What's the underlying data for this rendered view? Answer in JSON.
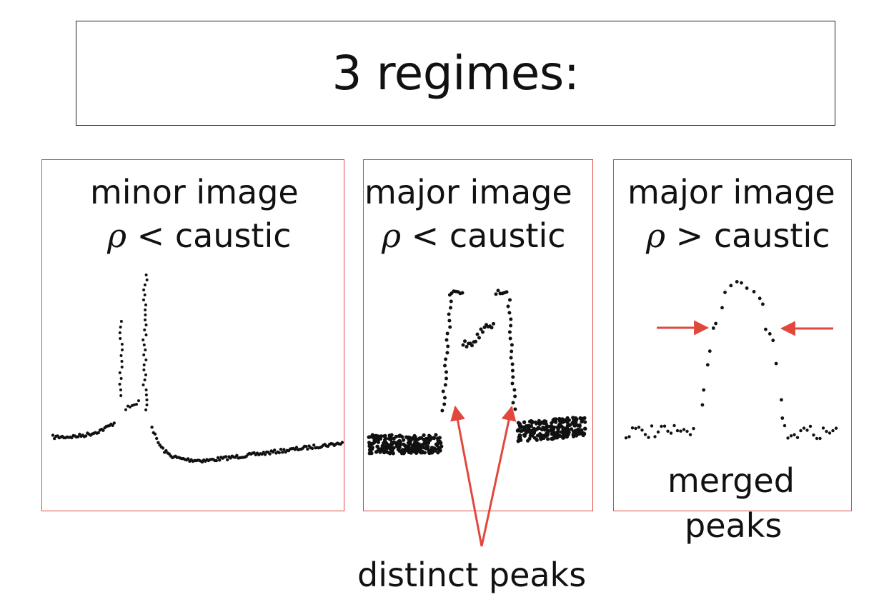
{
  "slide": {
    "title": "3 regimes:"
  },
  "panels": [
    {
      "line1": "minor image",
      "rho_symbol": "ρ",
      "relation": " < caustic"
    },
    {
      "line1": "major image",
      "rho_symbol": "ρ",
      "relation": " < caustic"
    },
    {
      "line1": "major image",
      "rho_symbol": "ρ",
      "relation": " > caustic"
    }
  ],
  "annotations": {
    "distinct": "distinct peaks",
    "merged_line1": "merged",
    "merged_line2": "peaks"
  },
  "colors": {
    "panel_border": "#e2473d",
    "arrow": "#e2473d",
    "dots": "#111111"
  }
}
